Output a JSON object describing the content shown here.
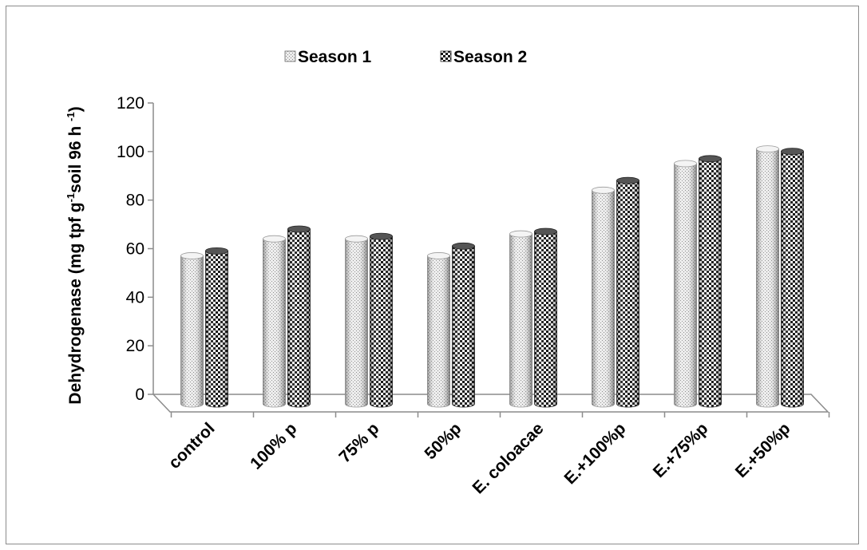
{
  "chart_data": {
    "type": "bar",
    "style": "3d-clustered-cylinder",
    "categories": [
      "control",
      "100% p",
      "75% p",
      "50%p",
      "E. coloacae",
      "E.+100%p",
      "E.+75%p",
      "E.+50%p"
    ],
    "series": [
      {
        "name": "Season 1",
        "values": [
          61,
          68,
          68,
          61,
          70,
          88,
          99,
          105
        ],
        "pattern": "light-dotted"
      },
      {
        "name": "Season 2",
        "values": [
          63,
          72,
          69,
          65,
          71,
          92,
          101,
          104
        ],
        "pattern": "black-checker"
      }
    ],
    "ylabel_parts": {
      "main": "Dehydrogenase (mg tpf g",
      "sup1": "-1",
      "mid": "soil  96 h ",
      "sup2": "-1",
      "end": ")"
    },
    "yticks": [
      "0",
      "20",
      "40",
      "60",
      "80",
      "100",
      "120"
    ],
    "ylim": [
      0,
      120
    ],
    "legend_position": "top",
    "grid": false
  }
}
